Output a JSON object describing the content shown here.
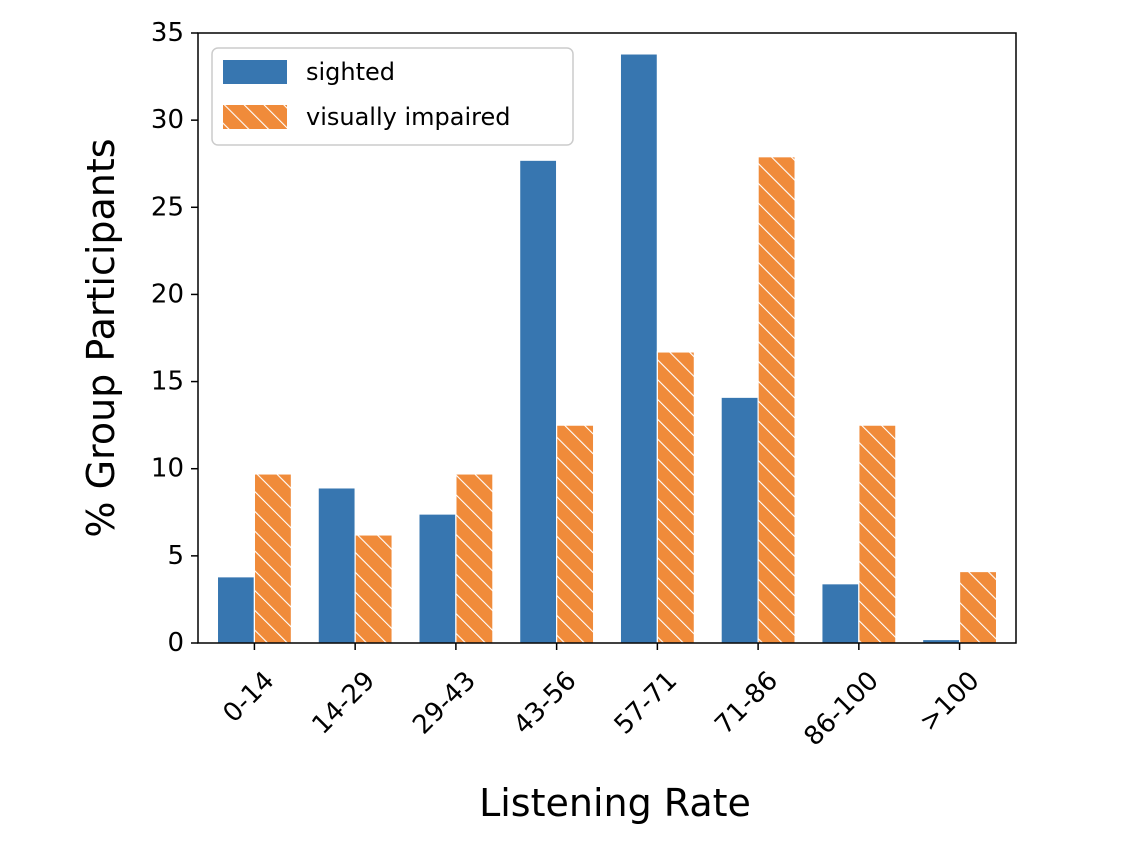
{
  "colors": {
    "sighted": "#3776b0",
    "visually_impaired": "#f08b3a",
    "hatch": "#ffffff",
    "axis": "#000000"
  },
  "chart_data": {
    "type": "bar",
    "xlabel": "Listening Rate",
    "ylabel": "% Group Participants",
    "ylim": [
      0,
      35
    ],
    "yticks": [
      "0",
      "5",
      "10",
      "15",
      "20",
      "25",
      "30",
      "35"
    ],
    "categories": [
      "0-14",
      "14-29",
      "29-43",
      "43-56",
      "57-71",
      "71-86",
      "86-100",
      ">100"
    ],
    "series": [
      {
        "name": "sighted",
        "pattern": "solid",
        "values": [
          3.8,
          8.9,
          7.4,
          27.7,
          33.8,
          14.1,
          3.4,
          0.2
        ]
      },
      {
        "name": "visually impaired",
        "pattern": "hatch",
        "values": [
          9.7,
          6.2,
          9.7,
          12.5,
          16.7,
          27.9,
          12.5,
          4.1
        ]
      }
    ],
    "legend_position": "top-left",
    "grid": false
  }
}
